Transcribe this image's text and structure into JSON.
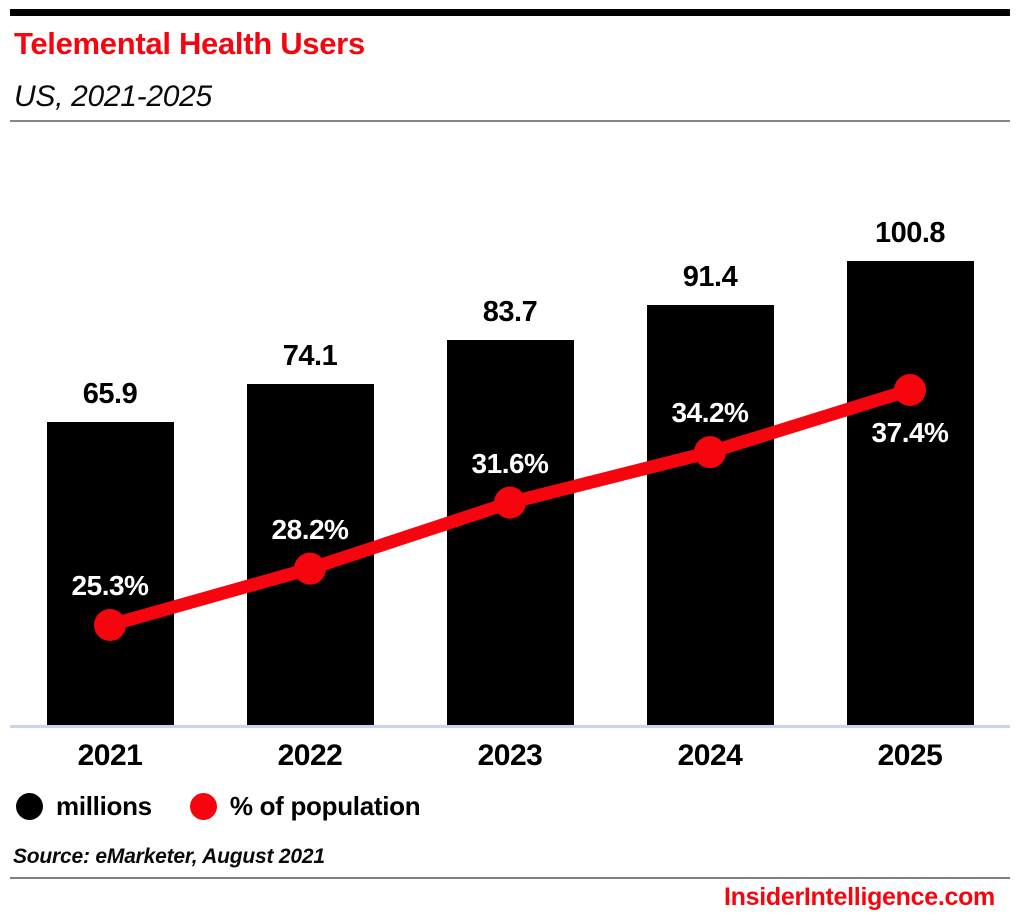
{
  "page": {
    "title": "Telemental Health Users",
    "subtitle": "US, 2021-2025",
    "source": "Source: eMarketer, August 2021",
    "brand": "InsiderIntelligence.com"
  },
  "colors": {
    "accent_red": "#f6050f",
    "bar_black": "#000000",
    "axis_baseline": "#ccd3e6",
    "divider_gray": "#868686",
    "pct_label_white": "#ffffff"
  },
  "legend": {
    "items": [
      {
        "label": "millions",
        "color": "#000000",
        "icon": "black-dot-icon"
      },
      {
        "label": "% of population",
        "color": "#f6050f",
        "icon": "red-dot-icon"
      }
    ]
  },
  "chart_data": {
    "type": "bar",
    "subtype": "bar-line-combo",
    "title": "Telemental Health Users",
    "subtitle": "US, 2021-2025",
    "categories": [
      "2021",
      "2022",
      "2023",
      "2024",
      "2025"
    ],
    "series": [
      {
        "name": "millions",
        "type": "bar",
        "color": "#000000",
        "values": [
          65.9,
          74.1,
          83.7,
          91.4,
          100.8
        ],
        "labels": [
          "65.9",
          "74.1",
          "83.7",
          "91.4",
          "100.8"
        ]
      },
      {
        "name": "% of population",
        "type": "line",
        "color": "#f6050f",
        "values": [
          25.3,
          28.2,
          31.6,
          34.2,
          37.4
        ],
        "labels": [
          "25.3%",
          "28.2%",
          "31.6%",
          "34.2%",
          "37.4%"
        ],
        "label_positions": [
          "above",
          "above",
          "above",
          "above",
          "below"
        ]
      }
    ],
    "xlabel": "",
    "ylabel": "",
    "grid": false,
    "axes_visible": false,
    "value_labels_visible": true,
    "legend_position": "bottom-left",
    "bar_axis_range": [
      0,
      110
    ],
    "line_axis_range_pct": [
      20,
      45
    ]
  }
}
